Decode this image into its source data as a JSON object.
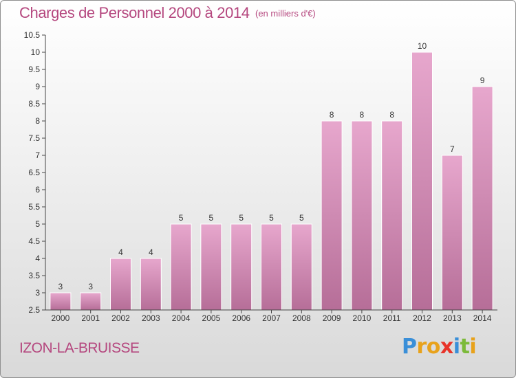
{
  "header": {
    "title": "Charges de Personnel 2000 à 2014",
    "unit": "(en milliers d'€)"
  },
  "footer": {
    "commune": "IZON-LA-BRUISSE",
    "logo_letters": [
      {
        "ch": "P",
        "color": "#3a8fd8"
      },
      {
        "ch": "r",
        "color": "#e8a21b"
      },
      {
        "ch": "o",
        "color": "#e8a21b"
      },
      {
        "ch": "x",
        "color": "#e8342a"
      },
      {
        "ch": "i",
        "color": "#3a8fd8"
      },
      {
        "ch": "t",
        "color": "#7cba3a"
      },
      {
        "ch": "i",
        "color": "#e8a21b"
      }
    ]
  },
  "colors": {
    "accent": "#b5487f",
    "bar_top": "#e7a7cd",
    "bar_bottom": "#b66e98",
    "axis": "#444444",
    "grid": "#cccccc"
  },
  "chart_data": {
    "type": "bar",
    "categories": [
      "2000",
      "2001",
      "2002",
      "2003",
      "2004",
      "2005",
      "2006",
      "2007",
      "2008",
      "2009",
      "2010",
      "2011",
      "2012",
      "2013",
      "2014"
    ],
    "values": [
      3,
      3,
      4,
      4,
      5,
      5,
      5,
      5,
      5,
      8,
      8,
      8,
      10,
      7,
      9
    ],
    "data_labels": [
      "3",
      "3",
      "4",
      "4",
      "5",
      "5",
      "5",
      "5",
      "5",
      "8",
      "8",
      "8",
      "10",
      "7",
      "9"
    ],
    "y_ticks": [
      "2.5",
      "3",
      "3.5",
      "4",
      "4.5",
      "5",
      "5.5",
      "6",
      "6.5",
      "7",
      "7.5",
      "8",
      "8.5",
      "9",
      "9.5",
      "10",
      "10.5"
    ],
    "ylim": [
      2.5,
      10.5
    ],
    "grid": false,
    "title": "Charges de Personnel 2000 à 2014"
  }
}
